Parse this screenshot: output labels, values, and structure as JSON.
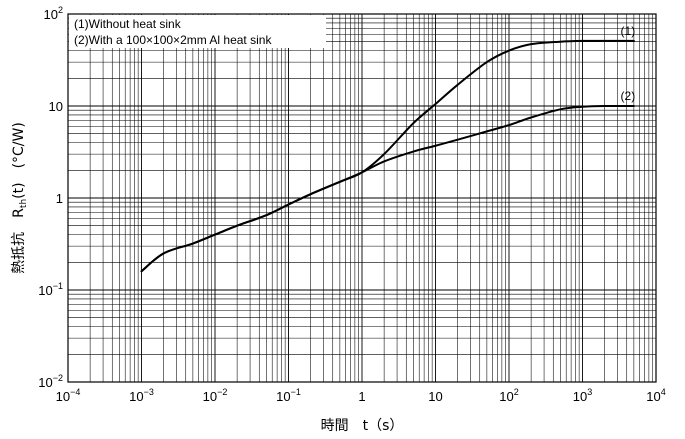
{
  "chart_data": {
    "type": "line",
    "xscale": "log",
    "yscale": "log",
    "xlim": [
      0.0001,
      10000
    ],
    "ylim": [
      0.01,
      100
    ],
    "grid": true,
    "xlabel_text": "時間　t（s）",
    "ylabel_main": "熱抵抗　R",
    "ylabel_sub": "th",
    "ylabel_rest": "(t)　(°C/W)",
    "x_tick_labels": [
      {
        "base": "10",
        "exp": "−4"
      },
      {
        "base": "10",
        "exp": "−3"
      },
      {
        "base": "10",
        "exp": "−2"
      },
      {
        "base": "10",
        "exp": "−1"
      },
      {
        "base": "1",
        "exp": ""
      },
      {
        "base": "10",
        "exp": ""
      },
      {
        "base": "10",
        "exp": "2"
      },
      {
        "base": "10",
        "exp": "3"
      },
      {
        "base": "10",
        "exp": "4"
      }
    ],
    "y_tick_labels": [
      {
        "base": "10",
        "exp": "−2"
      },
      {
        "base": "10",
        "exp": "−1"
      },
      {
        "base": "1",
        "exp": ""
      },
      {
        "base": "10",
        "exp": ""
      },
      {
        "base": "10",
        "exp": "2"
      }
    ],
    "legend_entries": [
      "(1)Without heat sink",
      "(2)With a 100×100×2mm Al heat sink"
    ],
    "legend_position": "top-left",
    "series": [
      {
        "curve_label": "(1)",
        "x": [
          0.001,
          0.002,
          0.005,
          0.01,
          0.02,
          0.05,
          0.1,
          0.2,
          0.5,
          1,
          2,
          5,
          10,
          20,
          50,
          100,
          200,
          500,
          1000,
          2000,
          5000
        ],
        "y": [
          0.16,
          0.25,
          0.32,
          0.4,
          0.5,
          0.65,
          0.85,
          1.1,
          1.5,
          1.9,
          3.0,
          6.5,
          10.5,
          17,
          30,
          40,
          47,
          50,
          51,
          51,
          51
        ]
      },
      {
        "curve_label": "(2)",
        "x": [
          0.001,
          0.002,
          0.005,
          0.01,
          0.02,
          0.05,
          0.1,
          0.2,
          0.5,
          1,
          2,
          5,
          10,
          20,
          50,
          100,
          200,
          500,
          1000,
          2000,
          5000
        ],
        "y": [
          0.16,
          0.25,
          0.32,
          0.4,
          0.5,
          0.65,
          0.85,
          1.1,
          1.5,
          1.9,
          2.5,
          3.2,
          3.7,
          4.3,
          5.3,
          6.2,
          7.5,
          9.2,
          9.8,
          10,
          10
        ]
      }
    ]
  }
}
